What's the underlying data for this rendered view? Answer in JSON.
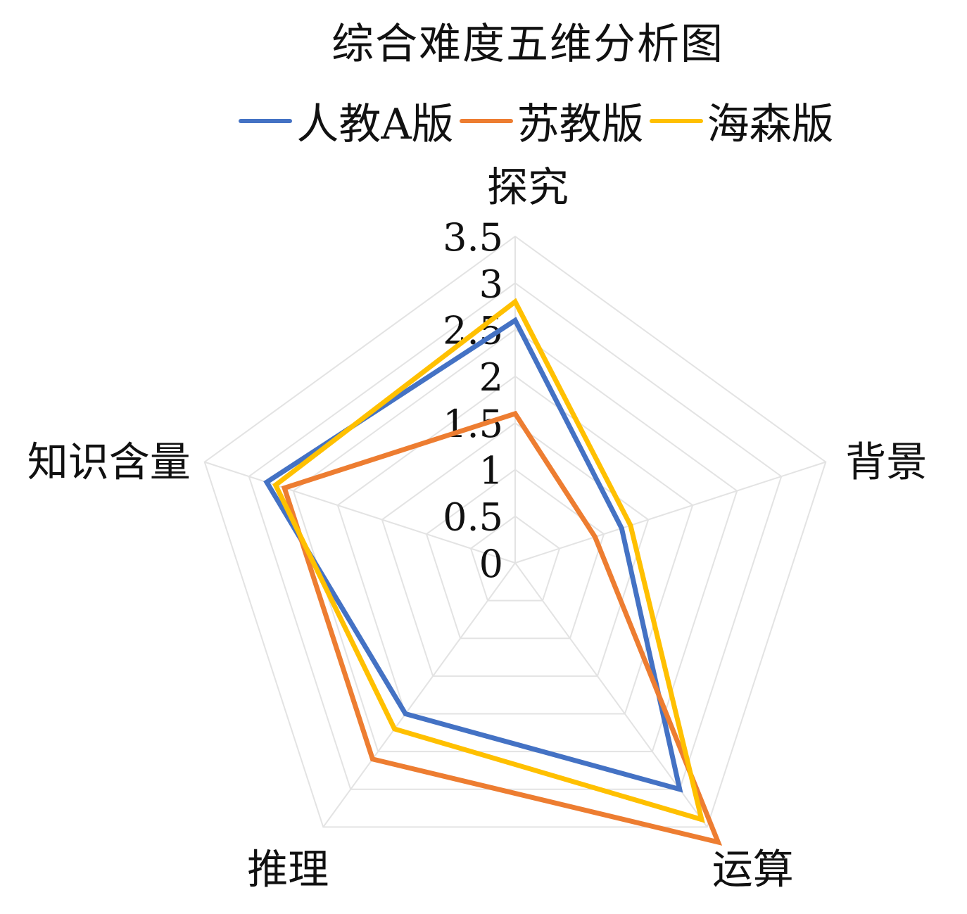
{
  "chart_data": {
    "type": "radar",
    "title": "综合难度五维分析图",
    "axes": [
      "探究",
      "背景",
      "运算",
      "推理",
      "知识含量"
    ],
    "ticks": [
      "0",
      "0.5",
      "1",
      "1.5",
      "2",
      "2.5",
      "3",
      "3.5"
    ],
    "rmax": 3.5,
    "grid": true,
    "legend_position": "top",
    "series": [
      {
        "name": "人教A版",
        "color": "#4472C4",
        "values": [
          2.6,
          1.2,
          3.0,
          2.0,
          2.8
        ]
      },
      {
        "name": "苏教版",
        "color": "#ED7D31",
        "values": [
          1.6,
          0.9,
          3.7,
          2.6,
          2.6
        ]
      },
      {
        "name": "海森版",
        "color": "#FFC000",
        "values": [
          2.8,
          1.3,
          3.4,
          2.2,
          2.7
        ]
      }
    ]
  }
}
